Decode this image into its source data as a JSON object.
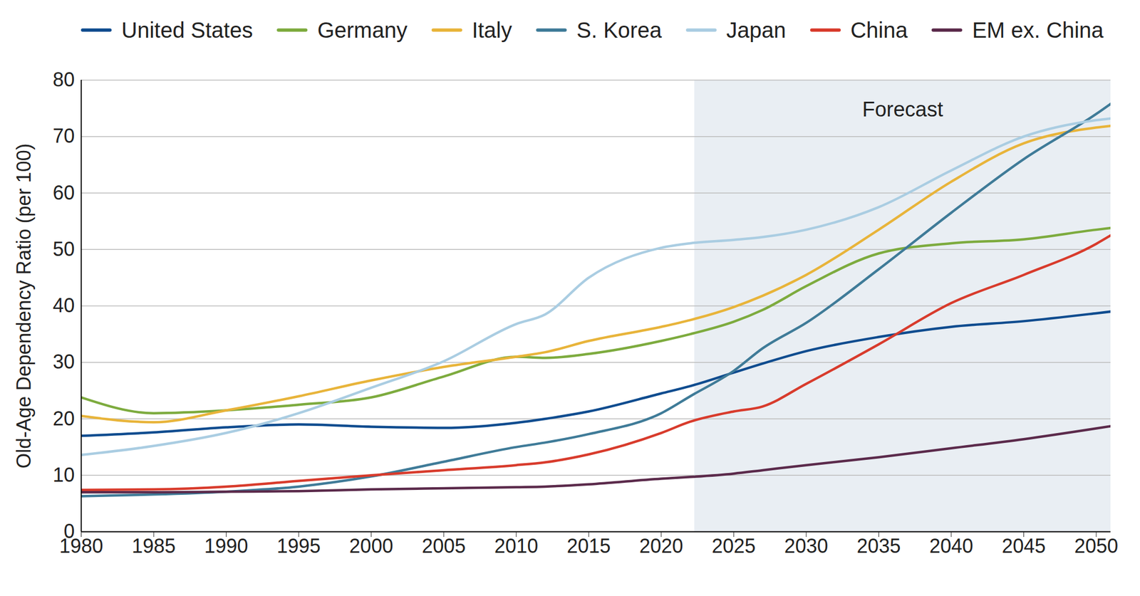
{
  "chart_data": {
    "type": "line",
    "ylabel": "Old-Age Dependency Ratio (per 100)",
    "x": [
      1980,
      1985,
      1990,
      1995,
      2000,
      2005,
      2010,
      2012,
      2015,
      2020,
      2022,
      2025,
      2027,
      2030,
      2035,
      2040,
      2045,
      2050,
      2051
    ],
    "series": [
      {
        "name": "United States",
        "color": "#0f4c8f",
        "values": [
          17,
          17.6,
          18.5,
          19,
          18.6,
          18.4,
          19.3,
          20,
          21.3,
          24.5,
          25.8,
          28.2,
          29.8,
          32,
          34.5,
          36.3,
          37.3,
          38.7,
          39
        ]
      },
      {
        "name": "Germany",
        "color": "#7dab3e",
        "values": [
          23.8,
          21,
          21.5,
          22.5,
          23.8,
          27.5,
          31,
          30.8,
          31.5,
          33.8,
          35,
          37.2,
          39.3,
          43.5,
          49.3,
          51.1,
          51.8,
          53.5,
          53.8
        ]
      },
      {
        "name": "Italy",
        "color": "#e8b43a",
        "values": [
          20.5,
          19.4,
          21.5,
          24,
          26.8,
          29.2,
          31,
          31.8,
          33.8,
          36.3,
          37.5,
          39.8,
          41.8,
          45.5,
          53.5,
          62,
          68.8,
          71.6,
          71.9
        ]
      },
      {
        "name": "S. Korea",
        "color": "#3f7b98",
        "values": [
          6.3,
          6.6,
          7.1,
          8,
          9.8,
          12.4,
          15,
          15.8,
          17.3,
          21,
          24,
          28.5,
          32.5,
          37,
          46.5,
          56.5,
          66,
          74,
          75.8
        ]
      },
      {
        "name": "Japan",
        "color": "#aacde2",
        "values": [
          13.6,
          15.2,
          17.5,
          21,
          25.5,
          30.2,
          36.8,
          38.5,
          45,
          50.3,
          51.1,
          51.7,
          52.2,
          53.5,
          57.5,
          64,
          70,
          72.9,
          73.2
        ]
      },
      {
        "name": "China",
        "color": "#d83b2c",
        "values": [
          7.4,
          7.5,
          8,
          9,
          10,
          10.9,
          11.8,
          12.3,
          13.7,
          17.5,
          19.5,
          21.3,
          22.2,
          26.2,
          33.2,
          40.5,
          45.5,
          51,
          52.5
        ]
      },
      {
        "name": "EM ex. China",
        "color": "#5b2a4b",
        "values": [
          7,
          7,
          7.1,
          7.2,
          7.5,
          7.7,
          7.9,
          8,
          8.4,
          9.4,
          9.7,
          10.3,
          10.9,
          11.8,
          13.2,
          14.8,
          16.4,
          18.3,
          18.7
        ]
      }
    ],
    "xlim": [
      1980,
      2051
    ],
    "xticks": [
      1980,
      1985,
      1990,
      1995,
      2000,
      2005,
      2010,
      2015,
      2020,
      2025,
      2030,
      2035,
      2040,
      2045,
      2050
    ],
    "ylim": [
      0,
      80
    ],
    "yticks": [
      0,
      10,
      20,
      30,
      40,
      50,
      60,
      70,
      80
    ],
    "grid": true,
    "legend": "top",
    "annotations": [
      {
        "type": "shaded_region",
        "label": "Forecast",
        "x_start": 2022.3,
        "x_end": 2051
      }
    ]
  }
}
